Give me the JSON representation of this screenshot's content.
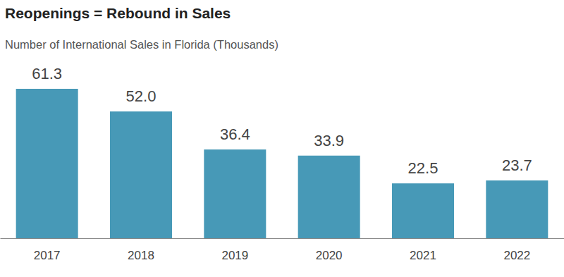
{
  "chart_data": {
    "type": "bar",
    "title": "Reopenings = Rebound in Sales",
    "subtitle": "Number of International Sales in Florida (Thousands)",
    "categories": [
      "2017",
      "2018",
      "2019",
      "2020",
      "2021",
      "2022"
    ],
    "values": [
      61.3,
      52.0,
      36.4,
      33.9,
      22.5,
      23.7
    ],
    "value_labels": [
      "61.3",
      "52.0",
      "36.4",
      "33.9",
      "22.5",
      "23.7"
    ],
    "color": "#4799b7",
    "ylim": [
      0,
      61.3
    ],
    "data_labels": true,
    "tick_labels": "x",
    "grid": false
  }
}
